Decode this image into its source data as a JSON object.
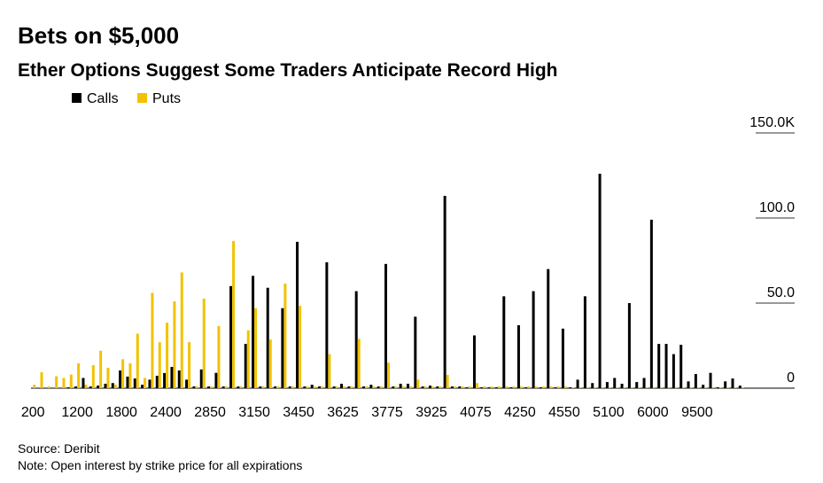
{
  "chart_data": {
    "type": "bar",
    "title": "Bets on $5,000",
    "subtitle": "Ether Options Suggest Some Traders Anticipate Record High",
    "source": "Source: Deribit",
    "note": "Note: Open interest by strike price for all expirations",
    "categories": [
      "200",
      null,
      null,
      null,
      null,
      null,
      "1200",
      null,
      null,
      null,
      null,
      null,
      "1800",
      null,
      null,
      null,
      null,
      null,
      "2400",
      null,
      null,
      null,
      null,
      null,
      "2850",
      null,
      null,
      null,
      null,
      null,
      "3150",
      null,
      null,
      null,
      null,
      null,
      "3450",
      null,
      null,
      null,
      null,
      null,
      "3625",
      null,
      null,
      null,
      null,
      null,
      "3775",
      null,
      null,
      null,
      null,
      null,
      "3925",
      null,
      null,
      null,
      null,
      null,
      "4075",
      null,
      null,
      null,
      null,
      null,
      "4250",
      null,
      null,
      null,
      null,
      null,
      "4550",
      null,
      null,
      null,
      null,
      null,
      "5100",
      null,
      null,
      null,
      null,
      null,
      "6000",
      null,
      null,
      null,
      null,
      null,
      "9500",
      null,
      null,
      null,
      null,
      null,
      null
    ],
    "series": [
      {
        "name": "Calls",
        "color": "#000000",
        "values": [
          0,
          0,
          0,
          0,
          0,
          0.5,
          1,
          6,
          1,
          1.5,
          2.6,
          3,
          10.4,
          6.8,
          5.7,
          2,
          5,
          7.3,
          8.9,
          12.5,
          10.4,
          5,
          1,
          11,
          1,
          9,
          1,
          60,
          1,
          26,
          66,
          1,
          59,
          1,
          47,
          1,
          86,
          1,
          2,
          1,
          74,
          1,
          2.6,
          1,
          57,
          1,
          2,
          1,
          73,
          1,
          2.6,
          2.6,
          42,
          1,
          1.5,
          1,
          113,
          1,
          1,
          0.5,
          31,
          0.5,
          0.5,
          0.5,
          54,
          0.5,
          37,
          0.5,
          57,
          0.5,
          70,
          0.5,
          35,
          0.5,
          5,
          54,
          3,
          126,
          3.6,
          6,
          2.6,
          50,
          3.6,
          6,
          99,
          26,
          26,
          20,
          25.5,
          4,
          8.3,
          2,
          9,
          0.5,
          4,
          5.7,
          1.5
        ]
      },
      {
        "name": "Puts",
        "color": "#f2c200",
        "values": [
          2,
          9.4,
          1,
          7,
          6,
          8,
          14.6,
          2,
          13.5,
          22,
          12,
          2,
          17,
          14.6,
          32,
          6,
          56,
          27,
          38.5,
          51,
          68,
          27,
          1,
          52.6,
          1,
          36.5,
          1,
          86.5,
          1,
          34,
          47,
          1,
          28.6,
          1,
          61.5,
          1,
          48.4,
          1,
          1,
          1,
          20,
          1,
          1,
          1,
          29,
          1,
          1,
          1,
          15,
          1,
          1,
          1,
          5,
          1,
          1,
          1,
          7.8,
          1,
          1,
          1,
          3,
          1,
          1,
          1,
          1,
          1,
          1,
          1,
          1,
          1,
          1,
          1,
          1,
          0.5,
          0.5,
          0.5,
          0.5,
          0.5,
          0.5,
          0.5,
          0.5,
          0.5,
          0.5,
          0.5,
          0.5,
          0.5,
          0.5,
          0.5,
          0.5,
          0.5,
          0.5,
          0.5,
          0.5,
          0.5,
          0.5,
          0.5,
          0.5
        ]
      }
    ],
    "ylim": [
      0,
      150
    ],
    "yticks": [
      0,
      {
        "value": 50,
        "label": "50.0"
      },
      {
        "value": 100,
        "label": "100.0"
      },
      {
        "value": 150,
        "label": "150.0K"
      }
    ]
  }
}
